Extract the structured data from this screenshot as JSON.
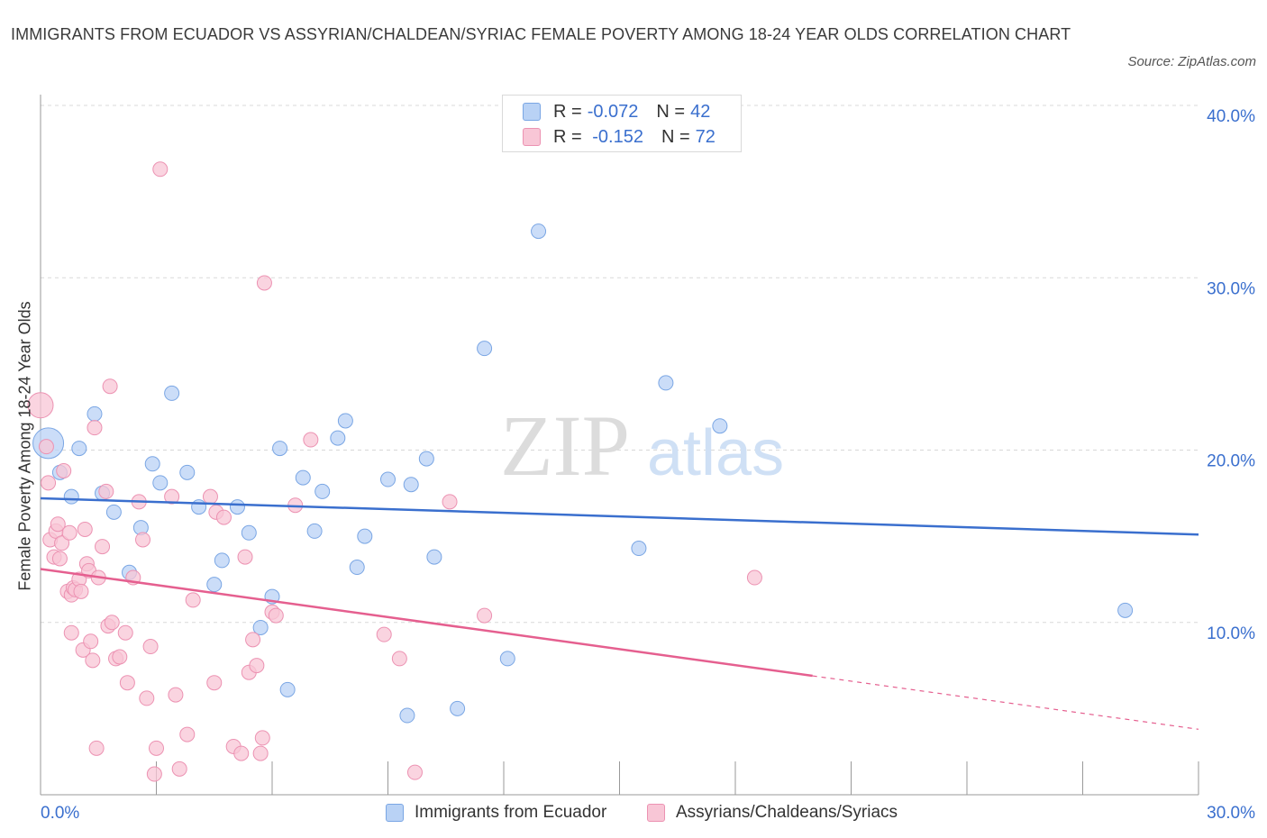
{
  "title": "IMMIGRANTS FROM ECUADOR VS ASSYRIAN/CHALDEAN/SYRIAC FEMALE POVERTY AMONG 18-24 YEAR OLDS CORRELATION CHART",
  "source": "Source: ZipAtlas.com",
  "watermark": {
    "zip": "ZIP",
    "atlas": "atlas"
  },
  "colors": {
    "blue": "#3a6fce",
    "blue_fill": "#b9d2f5",
    "blue_stroke": "#7aa6e4",
    "pink": "#e55f8f",
    "pink_fill": "#f8c6d6",
    "pink_stroke": "#ec92b2",
    "tick_text": "#3a6fce",
    "grid": "#d8d8d8"
  },
  "legend": {
    "rows": [
      {
        "r_label": "R = ",
        "r_value": "-0.072",
        "n_label": "N = ",
        "n_value": "42"
      },
      {
        "r_label": "R = ",
        "r_value": " -0.152",
        "n_label": "N = ",
        "n_value": "72"
      }
    ]
  },
  "chart_data": {
    "type": "scatter",
    "title": "IMMIGRANTS FROM ECUADOR VS ASSYRIAN/CHALDEAN/SYRIAC FEMALE POVERTY AMONG 18-24 YEAR OLDS CORRELATION CHART",
    "xlabel": "",
    "ylabel": "Female Poverty Among 18-24 Year Olds",
    "xlim": [
      0,
      30
    ],
    "ylim": [
      0,
      40
    ],
    "x_tick_labels": [
      "0.0%",
      "30.0%"
    ],
    "y_tick_labels": [
      "10.0%",
      "20.0%",
      "30.0%",
      "40.0%"
    ],
    "y_ticks": [
      10,
      20,
      30,
      40
    ],
    "grid": true,
    "legend_position": "top-center",
    "series": [
      {
        "name": "Immigrants from Ecuador",
        "color": "#3a6fce",
        "trend": {
          "x": [
            0,
            30
          ],
          "y": [
            17.2,
            15.1
          ],
          "dashed_from": null
        },
        "points": [
          [
            0.2,
            20.4
          ],
          [
            0.5,
            18.7
          ],
          [
            0.8,
            17.3
          ],
          [
            1.0,
            20.1
          ],
          [
            1.4,
            22.1
          ],
          [
            1.6,
            17.5
          ],
          [
            1.9,
            16.4
          ],
          [
            2.3,
            12.9
          ],
          [
            2.6,
            15.5
          ],
          [
            2.9,
            19.2
          ],
          [
            3.1,
            18.1
          ],
          [
            3.4,
            23.3
          ],
          [
            3.8,
            18.7
          ],
          [
            4.1,
            16.7
          ],
          [
            4.5,
            12.2
          ],
          [
            4.7,
            13.6
          ],
          [
            5.1,
            16.7
          ],
          [
            5.4,
            15.2
          ],
          [
            5.7,
            9.7
          ],
          [
            6.0,
            11.5
          ],
          [
            6.2,
            20.1
          ],
          [
            6.4,
            6.1
          ],
          [
            6.8,
            18.4
          ],
          [
            7.1,
            15.3
          ],
          [
            7.3,
            17.6
          ],
          [
            7.7,
            20.7
          ],
          [
            7.9,
            21.7
          ],
          [
            8.2,
            13.2
          ],
          [
            8.4,
            15.0
          ],
          [
            9.0,
            18.3
          ],
          [
            9.5,
            4.6
          ],
          [
            9.6,
            18.0
          ],
          [
            10.0,
            19.5
          ],
          [
            10.2,
            13.8
          ],
          [
            10.8,
            5.0
          ],
          [
            11.5,
            25.9
          ],
          [
            12.1,
            7.9
          ],
          [
            12.9,
            32.7
          ],
          [
            15.5,
            14.3
          ],
          [
            16.2,
            23.9
          ],
          [
            17.6,
            21.4
          ],
          [
            28.1,
            10.7
          ]
        ]
      },
      {
        "name": "Assyrians/Chaldeans/Syriacs",
        "color": "#e55f8f",
        "trend": {
          "x": [
            0,
            30
          ],
          "y": [
            13.1,
            3.8
          ],
          "dashed_from": 20.0
        },
        "points": [
          [
            0.0,
            22.6
          ],
          [
            0.15,
            20.2
          ],
          [
            0.2,
            18.1
          ],
          [
            0.25,
            14.8
          ],
          [
            0.35,
            13.8
          ],
          [
            0.4,
            15.3
          ],
          [
            0.45,
            15.7
          ],
          [
            0.5,
            13.7
          ],
          [
            0.55,
            14.6
          ],
          [
            0.6,
            18.8
          ],
          [
            0.7,
            11.8
          ],
          [
            0.75,
            15.2
          ],
          [
            0.8,
            11.6
          ],
          [
            0.8,
            9.4
          ],
          [
            0.85,
            12.0
          ],
          [
            0.9,
            11.9
          ],
          [
            1.0,
            12.5
          ],
          [
            1.05,
            11.8
          ],
          [
            1.1,
            8.4
          ],
          [
            1.15,
            15.4
          ],
          [
            1.2,
            13.4
          ],
          [
            1.25,
            13.0
          ],
          [
            1.3,
            8.9
          ],
          [
            1.35,
            7.8
          ],
          [
            1.4,
            21.3
          ],
          [
            1.45,
            2.7
          ],
          [
            1.5,
            12.6
          ],
          [
            1.6,
            14.4
          ],
          [
            1.7,
            17.6
          ],
          [
            1.75,
            9.8
          ],
          [
            1.8,
            23.7
          ],
          [
            1.85,
            10.0
          ],
          [
            1.95,
            7.9
          ],
          [
            2.05,
            8.0
          ],
          [
            2.2,
            9.4
          ],
          [
            2.25,
            6.5
          ],
          [
            2.4,
            12.6
          ],
          [
            2.55,
            17.0
          ],
          [
            2.65,
            14.8
          ],
          [
            2.75,
            5.6
          ],
          [
            2.85,
            8.6
          ],
          [
            2.95,
            1.2
          ],
          [
            3.0,
            2.7
          ],
          [
            3.1,
            36.3
          ],
          [
            3.4,
            17.3
          ],
          [
            3.5,
            5.8
          ],
          [
            3.6,
            1.5
          ],
          [
            3.8,
            3.5
          ],
          [
            3.95,
            11.3
          ],
          [
            4.4,
            17.3
          ],
          [
            4.5,
            6.5
          ],
          [
            4.55,
            16.4
          ],
          [
            4.75,
            16.1
          ],
          [
            5.0,
            2.8
          ],
          [
            5.2,
            2.4
          ],
          [
            5.3,
            13.8
          ],
          [
            5.4,
            7.1
          ],
          [
            5.5,
            9.0
          ],
          [
            5.6,
            7.5
          ],
          [
            5.7,
            2.4
          ],
          [
            5.75,
            3.3
          ],
          [
            5.8,
            29.7
          ],
          [
            6.0,
            10.6
          ],
          [
            6.1,
            10.4
          ],
          [
            6.6,
            16.8
          ],
          [
            7.0,
            20.6
          ],
          [
            8.9,
            9.3
          ],
          [
            9.3,
            7.9
          ],
          [
            9.7,
            1.3
          ],
          [
            10.6,
            17.0
          ],
          [
            11.5,
            10.4
          ],
          [
            18.5,
            12.6
          ]
        ]
      }
    ]
  }
}
